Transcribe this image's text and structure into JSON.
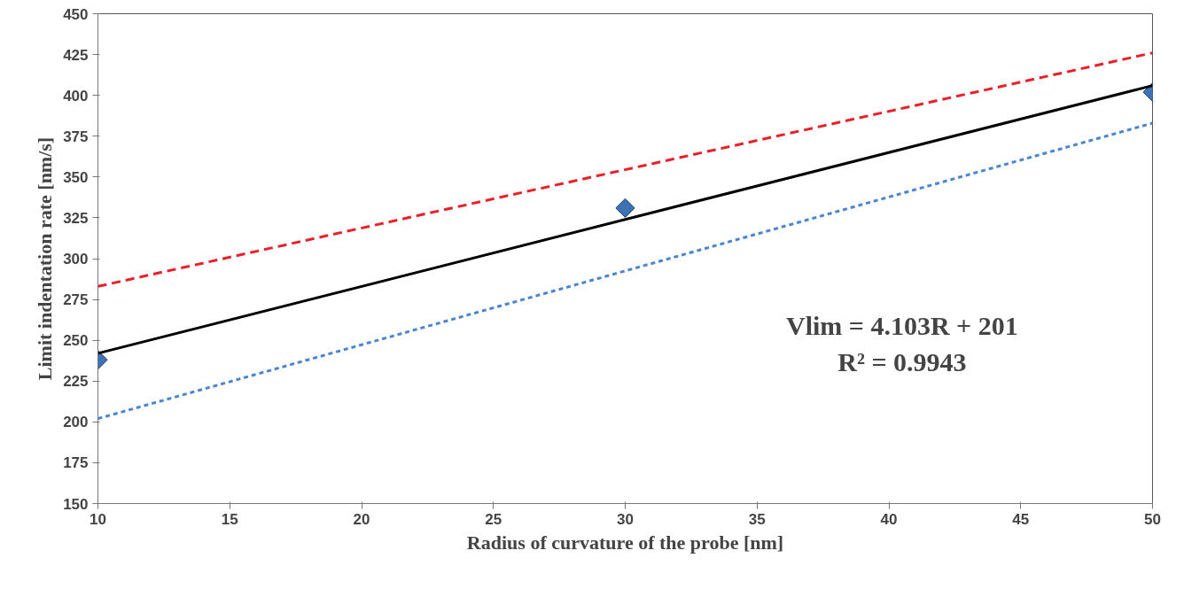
{
  "chart_data": {
    "type": "scatter",
    "xlabel": "Radius of curvature of the probe [nm]",
    "ylabel": "Limit indentation rate [nm/s]",
    "xlim": [
      10,
      50
    ],
    "xticks": [
      10,
      15,
      20,
      25,
      30,
      35,
      40,
      45,
      50
    ],
    "ylim": [
      150,
      450
    ],
    "yticks": [
      150,
      175,
      200,
      225,
      250,
      275,
      300,
      325,
      350,
      375,
      400,
      425,
      450
    ],
    "grid": false,
    "series": [
      {
        "x": [
          10,
          30,
          50
        ],
        "values": [
          238,
          331,
          402
        ],
        "color": "#3d72b4",
        "marker": "diamond"
      },
      {
        "type": "line",
        "x": [
          10,
          50
        ],
        "values": [
          242,
          406
        ],
        "color": "#000000",
        "line_style": "solid"
      },
      {
        "type": "line",
        "x": [
          10,
          50
        ],
        "values": [
          283,
          426
        ],
        "color": "#e8202a",
        "line_style": "dashed"
      },
      {
        "type": "line",
        "x": [
          10,
          50
        ],
        "values": [
          202,
          383
        ],
        "color": "#4a86d0",
        "line_style": "dotted"
      }
    ],
    "annotations": [
      "Vlim = 4.103R + 201",
      "R² = 0.9943"
    ]
  }
}
